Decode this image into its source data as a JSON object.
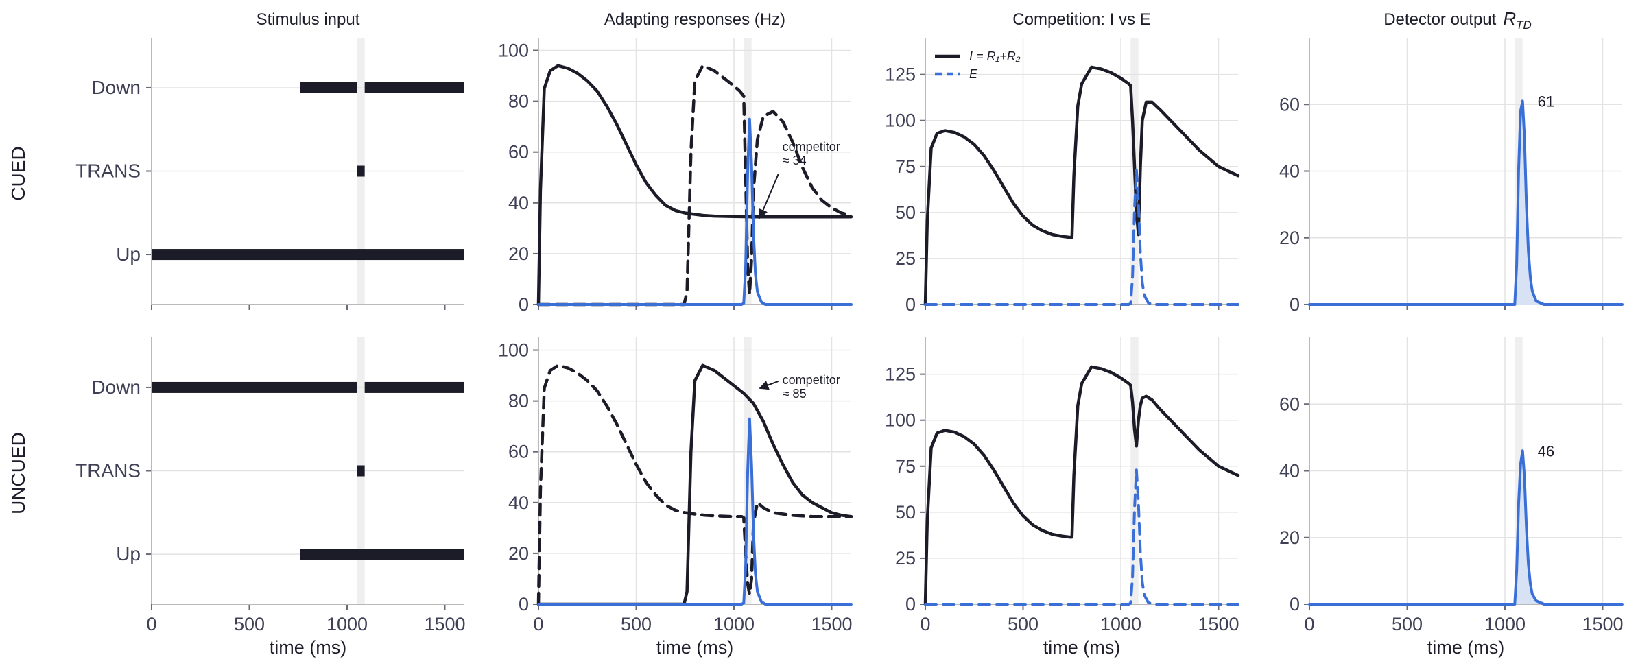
{
  "figure": {
    "column_titles": [
      "Stimulus input",
      "Adapting responses  (Hz)",
      "Competition:  I  vs  E",
      "Detector output"
    ],
    "detector_title_math": "R",
    "detector_title_sub": "TD",
    "row_labels": [
      "CUED",
      "UNCUED"
    ],
    "x_axis_title": "time  (ms)",
    "colors": {
      "dark": "#1c1c28",
      "blue": "#3a6fd8",
      "shade": "#efefef",
      "fill": "#d8e2f5"
    }
  },
  "chart_data": [
    {
      "id": "cued-stimulus",
      "type": "bar",
      "row": "CUED",
      "column": "Stimulus input",
      "categories": [
        "Up",
        "TRANS",
        "Down"
      ],
      "xlim": [
        0,
        1600
      ],
      "xticks": [
        0,
        500,
        1000,
        1500
      ],
      "tick_labels_shown": false,
      "intervals": {
        "Up": [
          [
            0,
            1600
          ]
        ],
        "TRANS": [
          [
            1050,
            1090
          ]
        ],
        "Down": [
          [
            760,
            1050
          ],
          [
            1090,
            1600
          ]
        ]
      },
      "shaded": [
        1050,
        1090
      ]
    },
    {
      "id": "cued-adapting",
      "type": "line",
      "row": "CUED",
      "column": "Adapting responses (Hz)",
      "xlim": [
        0,
        1600
      ],
      "ylim": [
        0,
        105
      ],
      "xticks": [
        0,
        500,
        1000,
        1500
      ],
      "yticks": [
        0,
        20,
        40,
        60,
        80,
        100
      ],
      "tick_labels_shown": false,
      "shaded": [
        1050,
        1090
      ],
      "series": [
        {
          "style": "solid-dark",
          "x": [
            0,
            10,
            30,
            60,
            100,
            150,
            200,
            250,
            300,
            350,
            400,
            450,
            500,
            550,
            600,
            650,
            700,
            750,
            800,
            850,
            900,
            1000,
            1100,
            1200,
            1300,
            1400,
            1500,
            1600
          ],
          "y": [
            0,
            45,
            85,
            92,
            94,
            93,
            91,
            88,
            84,
            78,
            71,
            63,
            55,
            48,
            43,
            39,
            37,
            36,
            35.5,
            35,
            34.8,
            34.6,
            34.5,
            34.5,
            34.5,
            34.5,
            34.5,
            34.5
          ]
        },
        {
          "style": "dashed-dark",
          "x": [
            0,
            700,
            745,
            760,
            780,
            800,
            840,
            900,
            950,
            1000,
            1030,
            1050,
            1060,
            1070,
            1080,
            1090,
            1100,
            1120,
            1150,
            1200,
            1250,
            1300,
            1350,
            1400,
            1450,
            1500,
            1550,
            1600
          ],
          "y": [
            0,
            0,
            0,
            5,
            60,
            88,
            94,
            92,
            89,
            86,
            84,
            82,
            50,
            15,
            4,
            18,
            45,
            65,
            74,
            76,
            72,
            64,
            54,
            46,
            41,
            38,
            36,
            35
          ]
        },
        {
          "style": "solid-blue",
          "x": [
            0,
            1040,
            1050,
            1060,
            1070,
            1080,
            1090,
            1100,
            1110,
            1120,
            1140,
            1160,
            1200,
            1600
          ],
          "y": [
            0,
            0,
            0.5,
            15,
            52,
            73,
            55,
            28,
            12,
            5,
            1,
            0,
            0,
            0
          ]
        }
      ],
      "annotation": {
        "lines": [
          "competitor",
          "≈ 34"
        ],
        "target_x": 1090,
        "target_y": 34
      }
    },
    {
      "id": "cued-competition",
      "type": "line",
      "row": "CUED",
      "column": "Competition: I vs E",
      "xlim": [
        0,
        1600
      ],
      "ylim": [
        0,
        145
      ],
      "xticks": [
        0,
        500,
        1000,
        1500
      ],
      "yticks": [
        0,
        25,
        50,
        75,
        100,
        125
      ],
      "tick_labels_shown": false,
      "shaded": [
        1050,
        1090
      ],
      "legend": {
        "position": "top-left",
        "entries": [
          {
            "label": "I = R₁+R₂",
            "style": "solid-dark"
          },
          {
            "label": "E",
            "style": "dashed-blue"
          }
        ]
      },
      "series": [
        {
          "style": "solid-dark",
          "x": [
            0,
            10,
            30,
            60,
            100,
            150,
            200,
            250,
            300,
            350,
            400,
            450,
            500,
            550,
            600,
            650,
            700,
            740,
            750,
            760,
            780,
            800,
            850,
            900,
            950,
            1000,
            1040,
            1050,
            1060,
            1070,
            1080,
            1090,
            1100,
            1110,
            1130,
            1160,
            1200,
            1300,
            1400,
            1500,
            1600
          ],
          "y": [
            0,
            45,
            85,
            93,
            94.5,
            93.5,
            91,
            87,
            81,
            73,
            64,
            55,
            48,
            43,
            40,
            38,
            37,
            36.5,
            36.5,
            70,
            108,
            120,
            129,
            128,
            126,
            123,
            120,
            119,
            100,
            75,
            50,
            38,
            75,
            100,
            110,
            110,
            106,
            95,
            84,
            75,
            70
          ]
        },
        {
          "style": "dashed-blue",
          "x": [
            0,
            1040,
            1050,
            1060,
            1070,
            1080,
            1090,
            1100,
            1110,
            1120,
            1140,
            1160,
            1200,
            1600
          ],
          "y": [
            0,
            0,
            0.5,
            15,
            52,
            73,
            55,
            28,
            12,
            5,
            1,
            0,
            0,
            0
          ]
        }
      ]
    },
    {
      "id": "cued-detector",
      "type": "area",
      "row": "CUED",
      "column": "Detector output",
      "xlim": [
        0,
        1600
      ],
      "ylim": [
        0,
        80
      ],
      "xticks": [
        0,
        500,
        1000,
        1500
      ],
      "yticks": [
        0,
        20,
        40,
        60
      ],
      "tick_labels_shown": false,
      "shaded": [
        1050,
        1090
      ],
      "series": [
        {
          "style": "solid-blue",
          "x": [
            0,
            1050,
            1060,
            1070,
            1080,
            1090,
            1100,
            1110,
            1120,
            1130,
            1140,
            1160,
            1200,
            1600
          ],
          "y": [
            0,
            0,
            12,
            40,
            58,
            61,
            50,
            30,
            16,
            8,
            4,
            1,
            0,
            0
          ]
        }
      ],
      "peak_label": {
        "text": "61",
        "x": 1090,
        "y": 61
      }
    },
    {
      "id": "uncued-stimulus",
      "type": "bar",
      "row": "UNCUED",
      "column": "Stimulus input",
      "categories": [
        "Up",
        "TRANS",
        "Down"
      ],
      "xlim": [
        0,
        1600
      ],
      "xticks": [
        0,
        500,
        1000,
        1500
      ],
      "tick_labels_shown": true,
      "intervals": {
        "Up": [
          [
            760,
            1600
          ]
        ],
        "TRANS": [
          [
            1050,
            1090
          ]
        ],
        "Down": [
          [
            0,
            1050
          ],
          [
            1090,
            1600
          ]
        ]
      },
      "shaded": [
        1050,
        1090
      ]
    },
    {
      "id": "uncued-adapting",
      "type": "line",
      "row": "UNCUED",
      "column": "Adapting responses (Hz)",
      "xlim": [
        0,
        1600
      ],
      "ylim": [
        0,
        105
      ],
      "xticks": [
        0,
        500,
        1000,
        1500
      ],
      "yticks": [
        0,
        20,
        40,
        60,
        80,
        100
      ],
      "tick_labels_shown": true,
      "shaded": [
        1050,
        1090
      ],
      "series": [
        {
          "style": "solid-dark",
          "x": [
            0,
            745,
            760,
            780,
            800,
            840,
            900,
            950,
            1000,
            1050,
            1100,
            1150,
            1200,
            1250,
            1300,
            1350,
            1400,
            1450,
            1500,
            1550,
            1600
          ],
          "y": [
            0,
            0,
            5,
            60,
            88,
            94,
            92,
            89,
            86,
            83,
            79,
            72,
            63,
            55,
            48,
            43,
            40,
            38,
            36,
            35,
            34.5
          ]
        },
        {
          "style": "dashed-dark",
          "x": [
            0,
            10,
            30,
            60,
            100,
            150,
            200,
            250,
            300,
            350,
            400,
            450,
            500,
            550,
            600,
            650,
            700,
            750,
            800,
            850,
            900,
            950,
            1000,
            1040,
            1050,
            1060,
            1070,
            1080,
            1090,
            1100,
            1120,
            1150,
            1200,
            1300,
            1400,
            1500,
            1600
          ],
          "y": [
            0,
            45,
            85,
            92,
            94,
            93,
            91,
            88,
            84,
            78,
            71,
            63,
            55,
            48,
            43,
            39,
            37,
            36,
            35.5,
            35,
            34.8,
            34.6,
            34.5,
            34.5,
            34,
            20,
            8,
            4,
            10,
            32,
            40,
            38,
            36,
            35,
            34.5,
            34.5,
            34.5
          ]
        },
        {
          "style": "solid-blue",
          "x": [
            0,
            1040,
            1050,
            1060,
            1070,
            1080,
            1090,
            1100,
            1110,
            1120,
            1140,
            1160,
            1200,
            1600
          ],
          "y": [
            0,
            0,
            0.5,
            15,
            52,
            73,
            55,
            28,
            12,
            5,
            1,
            0,
            0,
            0
          ]
        }
      ],
      "annotation": {
        "lines": [
          "competitor",
          "≈ 85"
        ],
        "target_x": 1090,
        "target_y": 85
      }
    },
    {
      "id": "uncued-competition",
      "type": "line",
      "row": "UNCUED",
      "column": "Competition: I vs E",
      "xlim": [
        0,
        1600
      ],
      "ylim": [
        0,
        145
      ],
      "xticks": [
        0,
        500,
        1000,
        1500
      ],
      "yticks": [
        0,
        25,
        50,
        75,
        100,
        125
      ],
      "tick_labels_shown": true,
      "shaded": [
        1050,
        1090
      ],
      "series": [
        {
          "style": "solid-dark",
          "x": [
            0,
            10,
            30,
            60,
            100,
            150,
            200,
            250,
            300,
            350,
            400,
            450,
            500,
            550,
            600,
            650,
            700,
            740,
            750,
            760,
            780,
            800,
            850,
            900,
            950,
            1000,
            1040,
            1050,
            1060,
            1070,
            1080,
            1090,
            1100,
            1110,
            1130,
            1160,
            1200,
            1300,
            1400,
            1500,
            1600
          ],
          "y": [
            0,
            45,
            85,
            93,
            94.5,
            93.5,
            91,
            87,
            81,
            73,
            64,
            55,
            48,
            43,
            40,
            38,
            37,
            36.5,
            36.5,
            70,
            108,
            120,
            129,
            128,
            126,
            123,
            120,
            119,
            110,
            95,
            86,
            100,
            108,
            112,
            113,
            111,
            106,
            95,
            84,
            75,
            70
          ]
        },
        {
          "style": "dashed-blue",
          "x": [
            0,
            1040,
            1050,
            1060,
            1070,
            1080,
            1090,
            1100,
            1110,
            1120,
            1140,
            1160,
            1200,
            1600
          ],
          "y": [
            0,
            0,
            0.5,
            15,
            52,
            73,
            55,
            28,
            12,
            5,
            1,
            0,
            0,
            0
          ]
        }
      ]
    },
    {
      "id": "uncued-detector",
      "type": "area",
      "row": "UNCUED",
      "column": "Detector output",
      "xlim": [
        0,
        1600
      ],
      "ylim": [
        0,
        80
      ],
      "xticks": [
        0,
        500,
        1000,
        1500
      ],
      "yticks": [
        0,
        20,
        40,
        60
      ],
      "tick_labels_shown": true,
      "shaded": [
        1050,
        1090
      ],
      "series": [
        {
          "style": "solid-blue",
          "x": [
            0,
            1050,
            1060,
            1070,
            1080,
            1090,
            1100,
            1110,
            1120,
            1130,
            1140,
            1160,
            1200,
            1600
          ],
          "y": [
            0,
            0,
            10,
            30,
            42,
            46,
            38,
            23,
            12,
            6,
            3,
            1,
            0,
            0
          ]
        }
      ],
      "peak_label": {
        "text": "46",
        "x": 1090,
        "y": 46
      }
    }
  ]
}
